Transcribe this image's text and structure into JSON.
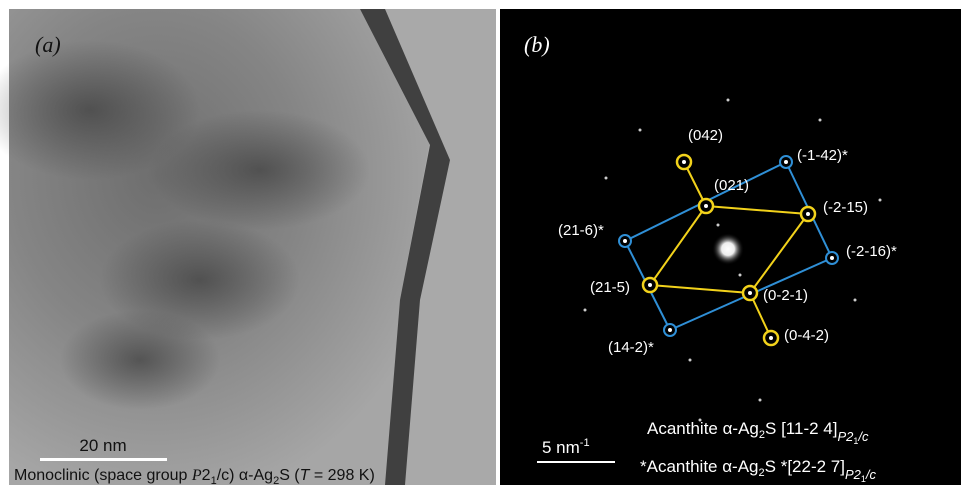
{
  "left_panel": {
    "label": "(a)",
    "scale_bar": "20 nm",
    "caption": [
      "Monoclinic (space group ",
      "P",
      "2",
      "1",
      "/c) ",
      "α-Ag",
      "2",
      "S (",
      "T",
      " = 298 K)"
    ]
  },
  "right_panel": {
    "label": "(b)",
    "scale_bar": [
      "5 nm",
      "-1"
    ],
    "legend": [
      [
        "Acanthite α-Ag",
        "2",
        "S  [11-2 4]",
        "P2",
        "1",
        "/c"
      ],
      [
        "*Acanthite α-Ag",
        "2",
        "S *[22-2 7]",
        "P2",
        "1",
        "/c"
      ]
    ],
    "spots": [
      "(042)",
      "(021)",
      "(-2-15)",
      "(21-5)",
      "(0-2-1)",
      "(0-4-2)",
      "(-1-42)*",
      "(21-6)*",
      "(-2-16)*",
      "(14-2)*"
    ]
  }
}
